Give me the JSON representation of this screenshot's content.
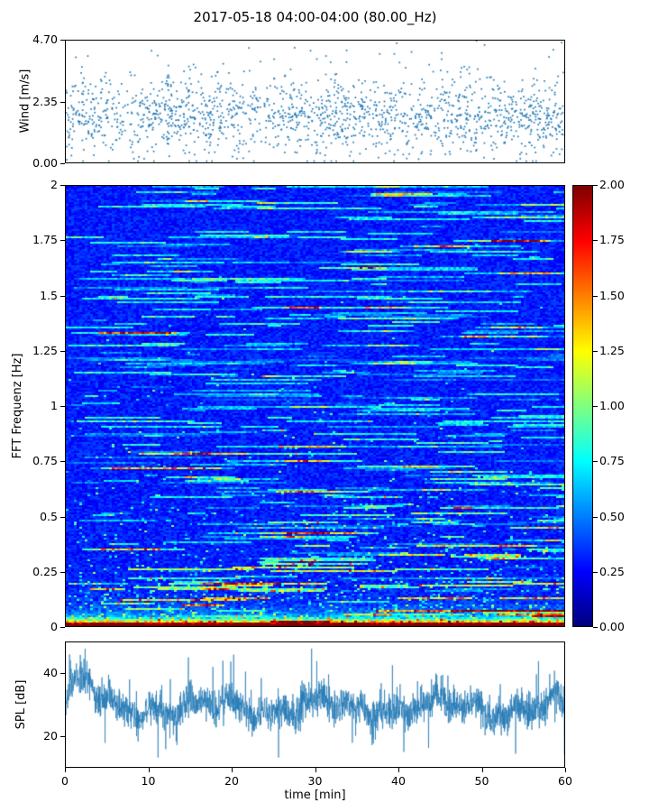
{
  "figure": {
    "title": "2017-05-18 04:00-04:00 (80.00_Hz)",
    "background_color": "#ffffff",
    "text_color": "#000000"
  },
  "xaxis": {
    "label": "time [min]",
    "lim": [
      0,
      60
    ],
    "tick_values": [
      0,
      10,
      20,
      30,
      40,
      50,
      60
    ],
    "tick_labels": [
      "0",
      "10",
      "20",
      "30",
      "40",
      "50",
      "60"
    ]
  },
  "chart_data": [
    {
      "type": "scatter",
      "name": "wind-speed",
      "ylabel": "Wind [m/s]",
      "xlim": [
        0,
        60
      ],
      "ylim": [
        0,
        4.7
      ],
      "ytick_values": [
        4.7,
        2.35,
        0.0
      ],
      "ytick_labels": [
        "4.70",
        "2.35",
        "0.00"
      ],
      "marker_color": "#1f77b4",
      "summary": {
        "n_points": 1700,
        "mean": 1.8,
        "std": 0.75,
        "min": 0.05,
        "max": 4.7,
        "high_outlier_fraction": 0.02,
        "description": "dense cloud of small blue dots between roughly 0.5 and 3 m/s with sparse points up to 4.7 m/s across the whole hour"
      },
      "seed": 20170518
    },
    {
      "type": "heatmap",
      "name": "fft-spectrogram",
      "ylabel": "FFT Frequenz [Hz]",
      "xlim": [
        0,
        60
      ],
      "ylim": [
        0,
        2
      ],
      "ytick_values": [
        2,
        1.75,
        1.5,
        1.25,
        1,
        0.75,
        0.5,
        0.25,
        0
      ],
      "ytick_labels": [
        "2",
        "1.75",
        "1.5",
        "1.25",
        "1",
        "0.75",
        "0.5",
        "0.25",
        "0"
      ],
      "colormap": "jet",
      "value_range": [
        0,
        2
      ],
      "grid": {
        "cols": 185,
        "rows": 244
      },
      "colorbar": {
        "tick_values": [
          2.0,
          1.75,
          1.5,
          1.25,
          1.0,
          0.75,
          0.5,
          0.25,
          0.0
        ],
        "tick_labels": [
          "2.00",
          "1.75",
          "1.50",
          "1.25",
          "1.00",
          "0.75",
          "0.50",
          "0.25",
          "0.00"
        ]
      },
      "summary": {
        "background_level_range": [
          0.2,
          0.5
        ],
        "low_frequency_band": "saturated red band (values >= 2.0) below ~0.03 Hz with orange/yellow/green mixture up to ~0.1 Hz",
        "texture": "horizontal cyan-green streaks of elevated energy scattered over a blue background at all frequencies",
        "speckle_band_upper_freq": 0.35
      },
      "seed": 42
    },
    {
      "type": "line",
      "name": "spl",
      "ylabel": "SPL [dB]",
      "xlim": [
        0,
        60
      ],
      "ylim": [
        10,
        50
      ],
      "ytick_values": [
        40,
        20
      ],
      "ytick_labels": [
        "40",
        "20"
      ],
      "line_color": "#1f77b4",
      "summary": {
        "n_points": 2400,
        "mean": 29,
        "range": [
          13,
          48
        ],
        "peak_time_min": 2,
        "description": "rapidly fluctuating sound pressure level band mostly between 22 and 38 dB, with a strong peak near 48 dB at ~2 min and occasional dips toward 13 dB"
      },
      "seed": 7
    }
  ]
}
